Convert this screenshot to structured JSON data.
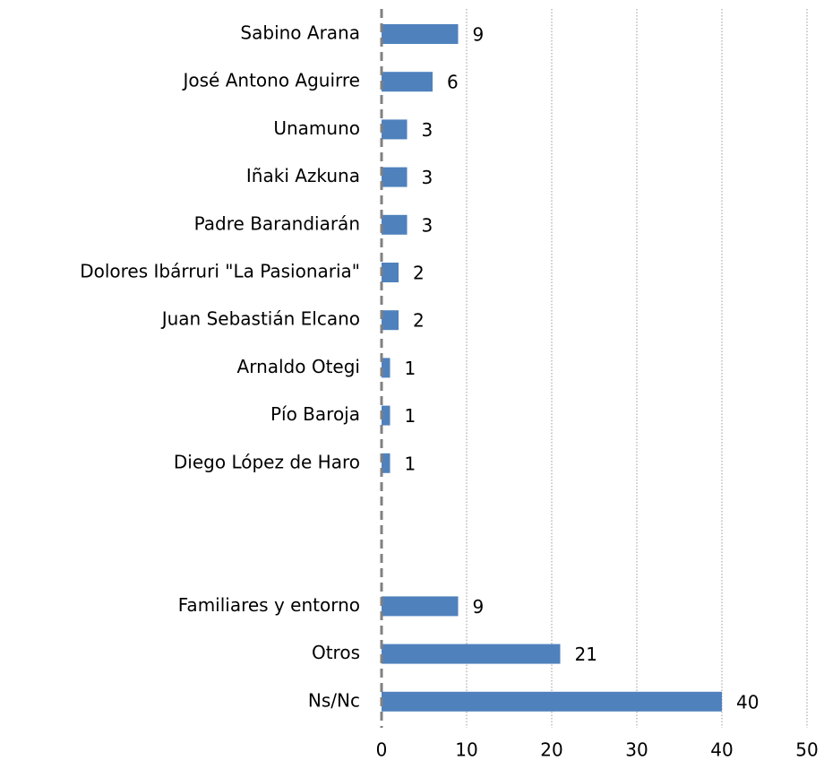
{
  "chart_data": {
    "type": "hbar",
    "categories": [
      "Sabino Arana",
      "José Antono Aguirre",
      "Unamuno",
      "Iñaki Azkuna",
      "Padre Barandiarán",
      "Dolores Ibárruri \"La Pasionaria\"",
      "Juan Sebastián Elcano",
      "Arnaldo Otegi",
      "Pío Baroja",
      "Diego López de Haro",
      null,
      null,
      "Familiares y entorno",
      "Otros",
      "Ns/Nc"
    ],
    "values": [
      9,
      6,
      3,
      3,
      3,
      2,
      2,
      1,
      1,
      1,
      null,
      null,
      9,
      21,
      40
    ],
    "color": "#4f81bd",
    "xlim": [
      0,
      50
    ],
    "xticks": [
      0,
      10,
      20,
      30,
      40,
      50
    ],
    "grid": true
  }
}
